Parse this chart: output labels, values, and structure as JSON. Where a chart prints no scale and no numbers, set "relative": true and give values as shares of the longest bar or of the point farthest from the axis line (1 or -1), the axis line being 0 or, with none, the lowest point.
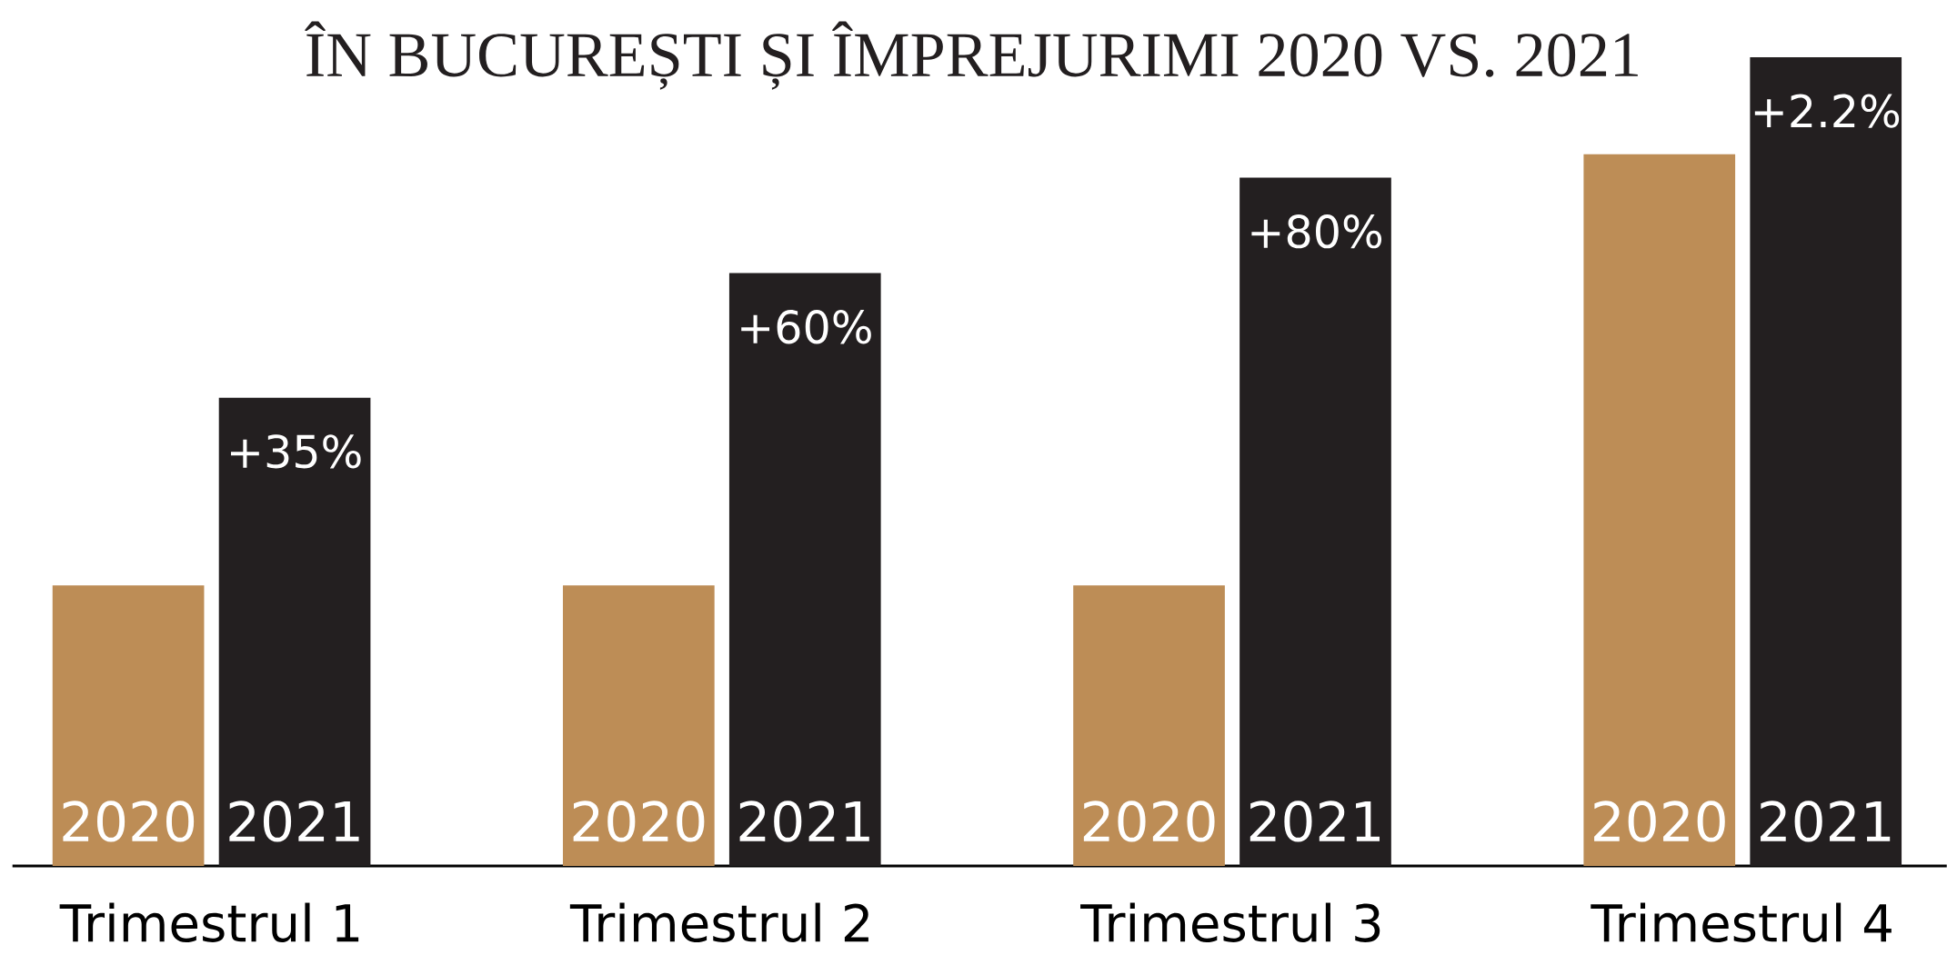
{
  "chart_data": {
    "type": "bar",
    "title": "ÎN BUCUREȘTI ȘI ÎMPREJURIMI 2020 VS. 2021",
    "relative": true,
    "categories": [
      "Trimestrul 1",
      "Trimestrul 2",
      "Trimestrul 3",
      "Trimestrul 4"
    ],
    "series": [
      {
        "name": "2020",
        "color": "#bd8d56",
        "values": [
          0.347,
          0.347,
          0.347,
          0.88
        ]
      },
      {
        "name": "2021",
        "color": "#231f20",
        "values": [
          0.579,
          0.733,
          0.851,
          1
        ]
      }
    ],
    "annotations": [
      "+35%",
      "+60%",
      "+80%",
      "+2.2%"
    ]
  }
}
